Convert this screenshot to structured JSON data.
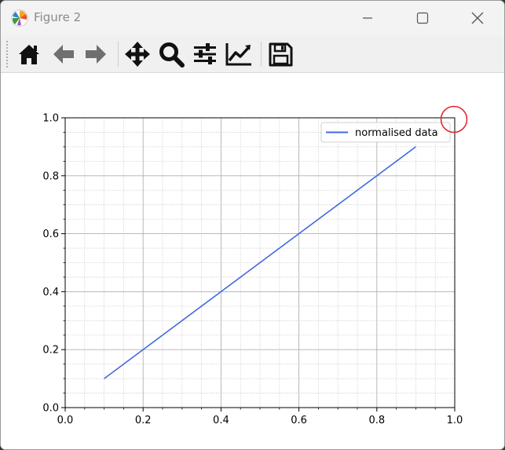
{
  "window": {
    "title": "Figure 2",
    "controls": [
      "minimize",
      "maximize",
      "close"
    ]
  },
  "toolbar": {
    "tools": [
      {
        "name": "home-icon",
        "tooltip": "Reset original view"
      },
      {
        "name": "back-icon",
        "tooltip": "Back to previous view"
      },
      {
        "name": "forward-icon",
        "tooltip": "Forward to next view"
      },
      {
        "name": "pan-icon",
        "tooltip": "Pan axes"
      },
      {
        "name": "zoom-icon",
        "tooltip": "Zoom to rectangle"
      },
      {
        "name": "subplots-icon",
        "tooltip": "Configure subplots"
      },
      {
        "name": "axes-edit-icon",
        "tooltip": "Edit axis, curve and image parameters"
      },
      {
        "name": "save-icon",
        "tooltip": "Save the figure"
      }
    ]
  },
  "colors": {
    "line": "#4169e1",
    "annotation": "#e0202a",
    "grid_major": "#b0b0b0",
    "grid_minor": "#d0d0d0"
  },
  "chart_data": {
    "type": "line",
    "title": "",
    "xlabel": "",
    "ylabel": "",
    "xlim": [
      0.0,
      1.0
    ],
    "ylim": [
      0.0,
      1.0
    ],
    "x_ticks": [
      "0.0",
      "0.2",
      "0.4",
      "0.6",
      "0.8",
      "1.0"
    ],
    "y_ticks": [
      "0.0",
      "0.2",
      "0.4",
      "0.6",
      "0.8",
      "1.0"
    ],
    "grid": "major and minor",
    "legend_position": "upper right",
    "series": [
      {
        "name": "normalised data",
        "x": [
          0.1,
          0.9
        ],
        "y": [
          0.1,
          0.9
        ]
      }
    ],
    "annotation": {
      "shape": "circle",
      "target": "top-right corner of axes (1.0, 1.0)"
    }
  }
}
